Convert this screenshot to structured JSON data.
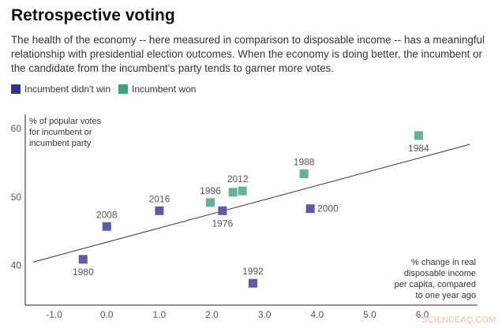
{
  "title": "Retrospective voting",
  "subtitle": "The health of the economy -- here measured in comparison to disposable income -- has a meaningful relationship with presidential election outcomes. When the economy is doing better, the incumbent or the candidate from the incumbent's party tends to garner more votes.",
  "watermark": "SCIENCEAQ.COM",
  "chart_data": {
    "type": "scatter",
    "ylabel": "% of popular votes for incumbent or incumbent party",
    "xlabel": "% change in real disposable income per capita, compared to one year ago",
    "xlim": [
      -1.55,
      7.05
    ],
    "ylim": [
      34.2,
      62.1
    ],
    "xticks": [
      -1.0,
      0.0,
      1.0,
      2.0,
      3.0,
      4.0,
      5.0,
      6.0
    ],
    "xtick_labels": [
      "-1.0",
      "0.0",
      "1.0",
      "2.0",
      "3.0",
      "4.0",
      "5.0",
      "6.0"
    ],
    "yticks": [
      40,
      50,
      60
    ],
    "ytick_labels": [
      "40",
      "50",
      "60"
    ],
    "grid": false,
    "legend_position": "top-left",
    "series": [
      {
        "name": "Incumbent didn't win",
        "color": "#5a5ca8",
        "legend_color": "#2f3590",
        "points": [
          {
            "x": -0.45,
            "y": 40.9,
            "label": "1980",
            "pos": "below"
          },
          {
            "x": 0.0,
            "y": 45.7,
            "label": "2008",
            "pos": "above"
          },
          {
            "x": 1.0,
            "y": 48.0,
            "label": "2016",
            "pos": "above"
          },
          {
            "x": 2.2,
            "y": 48.0,
            "label": "1976",
            "pos": "below"
          },
          {
            "x": 3.87,
            "y": 48.3,
            "label": "2000",
            "pos": "right"
          },
          {
            "x": 2.78,
            "y": 37.4,
            "label": "1992",
            "pos": "above"
          }
        ]
      },
      {
        "name": "Incumbent won",
        "color": "#62b394",
        "legend_color": "#3aa57a",
        "points": [
          {
            "x": 1.97,
            "y": 49.2,
            "label": "1996",
            "pos": "above"
          },
          {
            "x": 2.4,
            "y": 50.7,
            "label": "",
            "pos": "above"
          },
          {
            "x": 2.58,
            "y": 50.9,
            "label": "2012",
            "pos": "aboveleft"
          },
          {
            "x": 3.75,
            "y": 53.4,
            "label": "1988",
            "pos": "above"
          },
          {
            "x": 5.93,
            "y": 59.0,
            "label": "1984",
            "pos": "below"
          }
        ]
      }
    ],
    "trendline": {
      "x": [
        -1.4,
        6.9
      ],
      "y": [
        40.5,
        57.7
      ]
    }
  }
}
